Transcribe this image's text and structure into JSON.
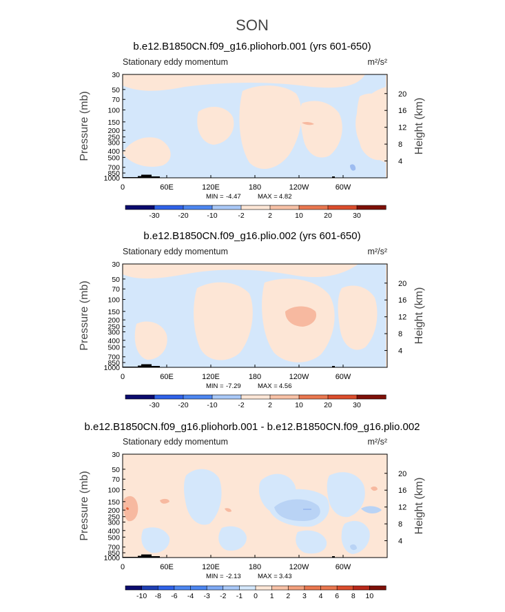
{
  "figure": {
    "season": "SON"
  },
  "colors": {
    "cold": "#d4e7fb",
    "warm": "#fde6d6",
    "warm2": "#f7b9a0",
    "warm3": "#f2a07d",
    "warm4": "#e8643c",
    "cold2": "#b9d3f5",
    "cold3": "#9dbcf0",
    "topo": "#000000",
    "palette_diverging": [
      "#0b0b6e",
      "#1f3fb3",
      "#2f62e8",
      "#4d86f0",
      "#7ea9f3",
      "#a9c8f7",
      "#d4e7fb",
      "#fde6d6",
      "#f7c1a6",
      "#f2a07d",
      "#e9774f",
      "#db4d2c",
      "#b8281a",
      "#7e1008"
    ]
  },
  "chart_data": [
    {
      "type": "heatmap",
      "title": "b.e12.B1850CN.f09_g16.pliohorb.001 (yrs 601-650)",
      "subtitle_left": "Stationary eddy momentum",
      "units": "m²/s²",
      "ylabel": "Pressure (mb)",
      "ylabel_right": "Height (km)",
      "x_ticks": [
        "0",
        "60E",
        "120E",
        "180",
        "120W",
        "60W"
      ],
      "x_tick_values": [
        0,
        60,
        120,
        180,
        240,
        300
      ],
      "xlim": [
        0,
        360
      ],
      "y_ticks": [
        "30",
        "50",
        "70",
        "100",
        "150",
        "200",
        "250",
        "300",
        "400",
        "500",
        "700",
        "850",
        "1000"
      ],
      "y_tick_values": [
        30,
        50,
        70,
        100,
        150,
        200,
        250,
        300,
        400,
        500,
        700,
        850,
        1000
      ],
      "ylim": [
        1000,
        30
      ],
      "height_ticks": [
        "4",
        "8",
        "12",
        "16",
        "20"
      ],
      "height_tick_values": [
        4,
        8,
        12,
        16,
        20
      ],
      "stats": {
        "min_label": "MIN =",
        "min": "-4.47",
        "max_label": "MAX =",
        "max": "4.82"
      },
      "colorbar": {
        "labels": [
          "-30",
          "-20",
          "-10",
          "-2",
          "2",
          "10",
          "20",
          "30"
        ]
      }
    },
    {
      "type": "heatmap",
      "title": "b.e12.B1850CN.f09_g16.plio.002 (yrs 601-650)",
      "subtitle_left": "Stationary eddy momentum",
      "units": "m²/s²",
      "ylabel": "Pressure (mb)",
      "ylabel_right": "Height (km)",
      "x_ticks": [
        "0",
        "60E",
        "120E",
        "180",
        "120W",
        "60W"
      ],
      "x_tick_values": [
        0,
        60,
        120,
        180,
        240,
        300
      ],
      "xlim": [
        0,
        360
      ],
      "y_ticks": [
        "30",
        "50",
        "70",
        "100",
        "150",
        "200",
        "250",
        "300",
        "400",
        "500",
        "700",
        "850",
        "1000"
      ],
      "y_tick_values": [
        30,
        50,
        70,
        100,
        150,
        200,
        250,
        300,
        400,
        500,
        700,
        850,
        1000
      ],
      "ylim": [
        1000,
        30
      ],
      "height_ticks": [
        "4",
        "8",
        "12",
        "16",
        "20"
      ],
      "height_tick_values": [
        4,
        8,
        12,
        16,
        20
      ],
      "stats": {
        "min_label": "MIN =",
        "min": "-7.29",
        "max_label": "MAX =",
        "max": "4.56"
      },
      "colorbar": {
        "labels": [
          "-30",
          "-20",
          "-10",
          "-2",
          "2",
          "10",
          "20",
          "30"
        ]
      }
    },
    {
      "type": "heatmap",
      "title": "b.e12.B1850CN.f09_g16.pliohorb.001 - b.e12.B1850CN.f09_g16.plio.002",
      "subtitle_left": "Stationary eddy momentum",
      "units": "m²/s²",
      "ylabel": "Pressure (mb)",
      "ylabel_right": "Height (km)",
      "x_ticks": [
        "0",
        "60E",
        "120E",
        "180",
        "120W",
        "60W"
      ],
      "x_tick_values": [
        0,
        60,
        120,
        180,
        240,
        300
      ],
      "xlim": [
        0,
        360
      ],
      "y_ticks": [
        "30",
        "50",
        "70",
        "100",
        "150",
        "200",
        "250",
        "300",
        "400",
        "500",
        "700",
        "850",
        "1000"
      ],
      "y_tick_values": [
        30,
        50,
        70,
        100,
        150,
        200,
        250,
        300,
        400,
        500,
        700,
        850,
        1000
      ],
      "ylim": [
        1000,
        30
      ],
      "height_ticks": [
        "4",
        "8",
        "12",
        "16",
        "20"
      ],
      "height_tick_values": [
        4,
        8,
        12,
        16,
        20
      ],
      "stats": {
        "min_label": "MIN =",
        "min": "-2.13",
        "max_label": "MAX =",
        "max": "3.43"
      },
      "colorbar": {
        "labels": [
          "-10",
          "-8",
          "-6",
          "-4",
          "-3",
          "-2",
          "-1",
          "0",
          "1",
          "2",
          "3",
          "4",
          "6",
          "8",
          "10"
        ]
      }
    }
  ]
}
